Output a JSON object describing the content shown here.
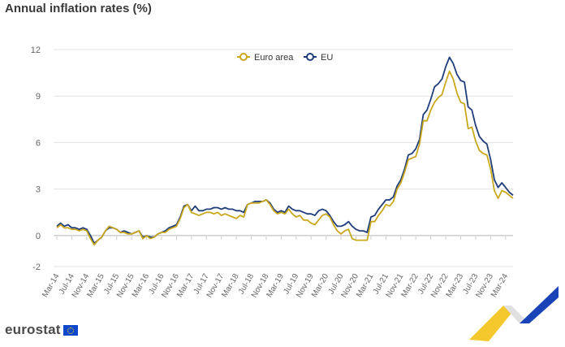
{
  "chart_data": {
    "type": "line",
    "title": "Annual inflation rates (%)",
    "xlabel": "",
    "ylabel": "",
    "ylim": [
      -2,
      12
    ],
    "yticks": [
      12,
      9,
      6,
      3,
      0,
      -2
    ],
    "grid": "horizontal",
    "legend_position": "top-center",
    "x_ticks": [
      "Mar-14",
      "Jul-14",
      "Nov-14",
      "Mar-15",
      "Jul-15",
      "Nov-15",
      "Mar-16",
      "Jul-16",
      "Nov-16",
      "Mar-17",
      "Jul-17",
      "Nov-17",
      "Mar-18",
      "Jul-18",
      "Nov-18",
      "Mar-19",
      "Jul-19",
      "Nov-19",
      "Mar-20",
      "Jul-20",
      "Nov-20",
      "Mar-21",
      "Jul-21",
      "Nov-21",
      "Mar-22",
      "Jul-22",
      "Nov-22",
      "Mar-23",
      "Jul-23",
      "Nov-23",
      "Mar-24"
    ],
    "x_start": "Mar-14",
    "x_end": "Apr-24",
    "series": [
      {
        "name": "Euro area",
        "color": "#c9a81e",
        "values": [
          0.5,
          0.7,
          0.5,
          0.5,
          0.4,
          0.4,
          0.3,
          0.4,
          0.3,
          -0.2,
          -0.6,
          -0.3,
          -0.1,
          0.3,
          0.6,
          0.5,
          0.4,
          0.2,
          0.2,
          0.1,
          0.1,
          0.2,
          0.3,
          -0.2,
          0.0,
          -0.2,
          -0.1,
          0.1,
          0.2,
          0.2,
          0.4,
          0.5,
          0.6,
          1.1,
          1.8,
          2.0,
          1.5,
          1.4,
          1.3,
          1.4,
          1.5,
          1.5,
          1.4,
          1.5,
          1.3,
          1.4,
          1.3,
          1.2,
          1.1,
          1.3,
          1.2,
          2.0,
          2.1,
          2.1,
          2.1,
          2.2,
          2.3,
          2.0,
          1.6,
          1.4,
          1.5,
          1.4,
          1.7,
          1.4,
          1.2,
          1.3,
          1.0,
          1.0,
          0.8,
          0.7,
          1.0,
          1.3,
          1.4,
          1.2,
          0.7,
          0.3,
          0.1,
          0.3,
          0.4,
          -0.2,
          -0.3,
          -0.3,
          -0.3,
          -0.3,
          0.9,
          0.9,
          1.3,
          1.6,
          2.0,
          1.9,
          2.2,
          3.0,
          3.4,
          4.1,
          4.9,
          5.0,
          5.1,
          5.9,
          7.4,
          7.4,
          8.1,
          8.6,
          8.9,
          9.1,
          9.9,
          10.6,
          10.1,
          9.2,
          8.6,
          8.5,
          6.9,
          7.0,
          6.1,
          5.5,
          5.3,
          5.2,
          4.3,
          2.9,
          2.4,
          2.9,
          2.8,
          2.6,
          2.4
        ]
      },
      {
        "name": "EU",
        "color": "#1f3d7a",
        "values": [
          0.6,
          0.8,
          0.6,
          0.7,
          0.5,
          0.5,
          0.4,
          0.5,
          0.4,
          0.0,
          -0.5,
          -0.3,
          -0.1,
          0.3,
          0.5,
          0.5,
          0.4,
          0.2,
          0.3,
          0.2,
          0.1,
          0.2,
          0.3,
          -0.1,
          0.0,
          -0.1,
          -0.1,
          0.1,
          0.2,
          0.3,
          0.5,
          0.6,
          0.7,
          1.2,
          1.9,
          2.0,
          1.6,
          1.9,
          1.6,
          1.6,
          1.7,
          1.7,
          1.8,
          1.8,
          1.7,
          1.8,
          1.7,
          1.7,
          1.6,
          1.6,
          1.5,
          2.0,
          2.1,
          2.2,
          2.2,
          2.2,
          2.3,
          2.1,
          1.7,
          1.5,
          1.6,
          1.5,
          1.9,
          1.7,
          1.6,
          1.6,
          1.5,
          1.4,
          1.4,
          1.3,
          1.6,
          1.7,
          1.6,
          1.3,
          0.9,
          0.6,
          0.6,
          0.7,
          0.9,
          0.6,
          0.4,
          0.3,
          0.3,
          0.2,
          1.2,
          1.3,
          1.7,
          2.0,
          2.3,
          2.3,
          2.5,
          3.2,
          3.6,
          4.3,
          5.2,
          5.3,
          5.6,
          6.2,
          7.8,
          8.1,
          8.8,
          9.6,
          9.8,
          10.1,
          10.9,
          11.5,
          11.1,
          10.4,
          10.0,
          9.9,
          8.3,
          8.1,
          7.1,
          6.4,
          6.1,
          5.9,
          4.9,
          3.6,
          3.1,
          3.4,
          3.1,
          2.8,
          2.6
        ]
      }
    ]
  },
  "brand": {
    "logo_text": "eurostat"
  }
}
